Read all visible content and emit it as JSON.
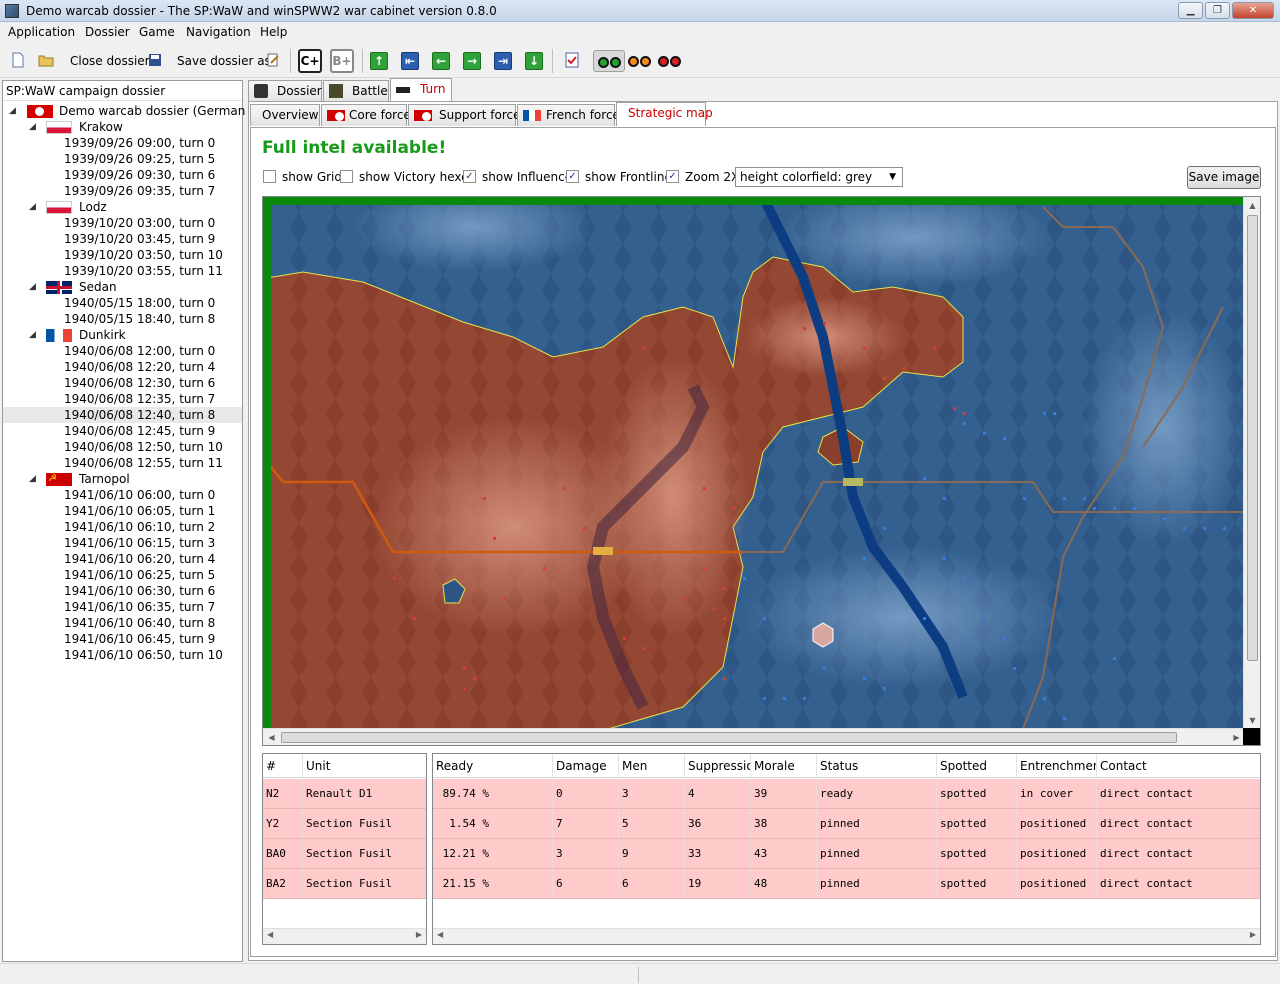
{
  "window": {
    "title": "Demo warcab dossier - The SP:WaW and winSPWW2 war cabinet version 0.8.0"
  },
  "menu": [
    "Application",
    "Dossier",
    "Game",
    "Navigation",
    "Help"
  ],
  "toolbar": {
    "close_dossier": "Close dossier",
    "save_dossier_as": "Save dossier as",
    "c_plus": "C+",
    "b_plus": "B+"
  },
  "tree": {
    "header": "SP:WaW campaign dossier",
    "root": "Demo warcab dossier (German f...",
    "battles": [
      {
        "name": "Krakow",
        "flag": "pl",
        "turns": [
          "1939/09/26 09:00, turn 0",
          "1939/09/26 09:25, turn 5",
          "1939/09/26 09:30, turn 6",
          "1939/09/26 09:35, turn 7"
        ]
      },
      {
        "name": "Lodz",
        "flag": "pl",
        "turns": [
          "1939/10/20 03:00, turn 0",
          "1939/10/20 03:45, turn 9",
          "1939/10/20 03:50, turn 10",
          "1939/10/20 03:55, turn 11"
        ]
      },
      {
        "name": "Sedan",
        "flag": "uk",
        "turns": [
          "1940/05/15 18:00, turn 0",
          "1940/05/15 18:40, turn 8"
        ]
      },
      {
        "name": "Dunkirk",
        "flag": "fr",
        "turns": [
          "1940/06/08 12:00, turn 0",
          "1940/06/08 12:20, turn 4",
          "1940/06/08 12:30, turn 6",
          "1940/06/08 12:35, turn 7",
          "1940/06/08 12:40, turn 8",
          "1940/06/08 12:45, turn 9",
          "1940/06/08 12:50, turn 10",
          "1940/06/08 12:55, turn 11"
        ]
      },
      {
        "name": "Tarnopol",
        "flag": "su",
        "turns": [
          "1941/06/10 06:00, turn 0",
          "1941/06/10 06:05, turn 1",
          "1941/06/10 06:10, turn 2",
          "1941/06/10 06:15, turn 3",
          "1941/06/10 06:20, turn 4",
          "1941/06/10 06:25, turn 5",
          "1941/06/10 06:30, turn 6",
          "1941/06/10 06:35, turn 7",
          "1941/06/10 06:40, turn 8",
          "1941/06/10 06:45, turn 9",
          "1941/06/10 06:50, turn 10"
        ]
      }
    ],
    "selected": "1940/06/08 12:40, turn 8"
  },
  "tabs": {
    "top": [
      "Dossier",
      "Battle",
      "Turn"
    ],
    "active_top": "Turn",
    "sub": [
      "Overview",
      "Core force",
      "Support force",
      "French force",
      "Strategic map"
    ],
    "active_sub": "Strategic map"
  },
  "map_view": {
    "intel": "Full intel available!",
    "options": [
      {
        "label": "show Grid",
        "checked": false
      },
      {
        "label": "show Victory hexes",
        "checked": false
      },
      {
        "label": "show Influence",
        "checked": true
      },
      {
        "label": "show Frontline",
        "checked": true
      },
      {
        "label": "Zoom 2X",
        "checked": true
      }
    ],
    "colorfield": "height colorfield: grey",
    "save_image": "Save image",
    "colors": {
      "german": "#7a3525",
      "french": "#2f5f8f",
      "frontline": "#e6e24a"
    }
  },
  "units_table": {
    "left_headers": [
      "#",
      "Unit"
    ],
    "right_headers": [
      "Ready",
      "Damage",
      "Men",
      "Suppressio",
      "Morale",
      "Status",
      "Spotted",
      "Entrenchmen",
      "Contact"
    ],
    "rows": [
      {
        "id": "N2",
        "unit": "Renault D1",
        "ready": " 89.74 %",
        "damage": "0",
        "men": "3",
        "supp": "4",
        "morale": "39",
        "status": "ready",
        "spotted": "spotted",
        "entr": "in cover",
        "contact": "direct contact"
      },
      {
        "id": "Y2",
        "unit": "Section Fusil",
        "ready": "  1.54 %",
        "damage": "7",
        "men": "5",
        "supp": "36",
        "morale": "38",
        "status": "pinned",
        "spotted": "spotted",
        "entr": "positioned",
        "contact": "direct contact"
      },
      {
        "id": "BA0",
        "unit": "Section Fusil",
        "ready": " 12.21 %",
        "damage": "3",
        "men": "9",
        "supp": "33",
        "morale": "43",
        "status": "pinned",
        "spotted": "spotted",
        "entr": "positioned",
        "contact": "direct contact"
      },
      {
        "id": "BA2",
        "unit": "Section Fusil",
        "ready": " 21.15 %",
        "damage": "6",
        "men": "6",
        "supp": "19",
        "morale": "48",
        "status": "pinned",
        "spotted": "spotted",
        "entr": "positioned",
        "contact": "direct contact"
      }
    ]
  }
}
